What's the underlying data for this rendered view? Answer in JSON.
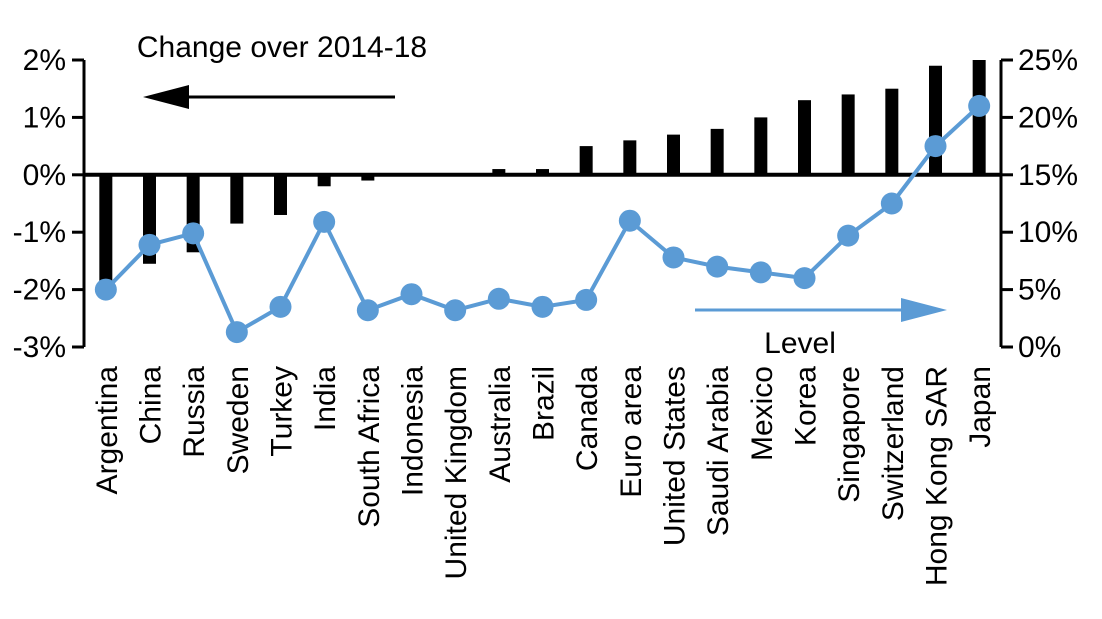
{
  "chart_data": {
    "type": "bar+line",
    "title": "Change over 2014-18",
    "categories": [
      "Argentina",
      "China",
      "Russia",
      "Sweden",
      "Turkey",
      "India",
      "South Africa",
      "Indonesia",
      "United Kingdom",
      "Australia",
      "Brazil",
      "Canada",
      "Euro area",
      "United States",
      "Saudi Arabia",
      "Mexico",
      "Korea",
      "Singapore",
      "Switzerland",
      "Hong Kong SAR",
      "Japan"
    ],
    "series": [
      {
        "name": "Change over 2014-18",
        "type": "bar",
        "axis": "left",
        "color": "#000000",
        "values": [
          -1.85,
          -1.55,
          -1.35,
          -0.85,
          -0.7,
          -0.2,
          -0.1,
          0.0,
          0.0,
          0.1,
          0.1,
          0.5,
          0.6,
          0.7,
          0.8,
          1.0,
          1.3,
          1.4,
          1.5,
          1.9,
          2.0
        ]
      },
      {
        "name": "Level",
        "type": "line",
        "axis": "right",
        "color": "#5b9bd5",
        "values": [
          5.0,
          8.9,
          9.9,
          1.3,
          3.5,
          10.9,
          3.2,
          4.6,
          3.2,
          4.2,
          3.5,
          4.1,
          11.0,
          7.8,
          7.0,
          6.5,
          6.0,
          9.7,
          12.5,
          17.5,
          21.0
        ]
      }
    ],
    "left_axis": {
      "min": -3,
      "max": 2,
      "tick_labels": [
        "2%",
        "1%",
        "0%",
        "-1%",
        "-2%",
        "-3%"
      ]
    },
    "right_axis": {
      "min": 0,
      "max": 25,
      "tick_labels": [
        "25%",
        "20%",
        "15%",
        "10%",
        "5%",
        "0%"
      ]
    },
    "annotations": {
      "bar_label": "Change over 2014-18",
      "bar_arrow_direction": "left",
      "line_label": "Level",
      "line_arrow_direction": "right"
    },
    "layout_hints": {
      "grid": false,
      "zero_line": true,
      "legend_position": "in-plot annotations"
    }
  }
}
